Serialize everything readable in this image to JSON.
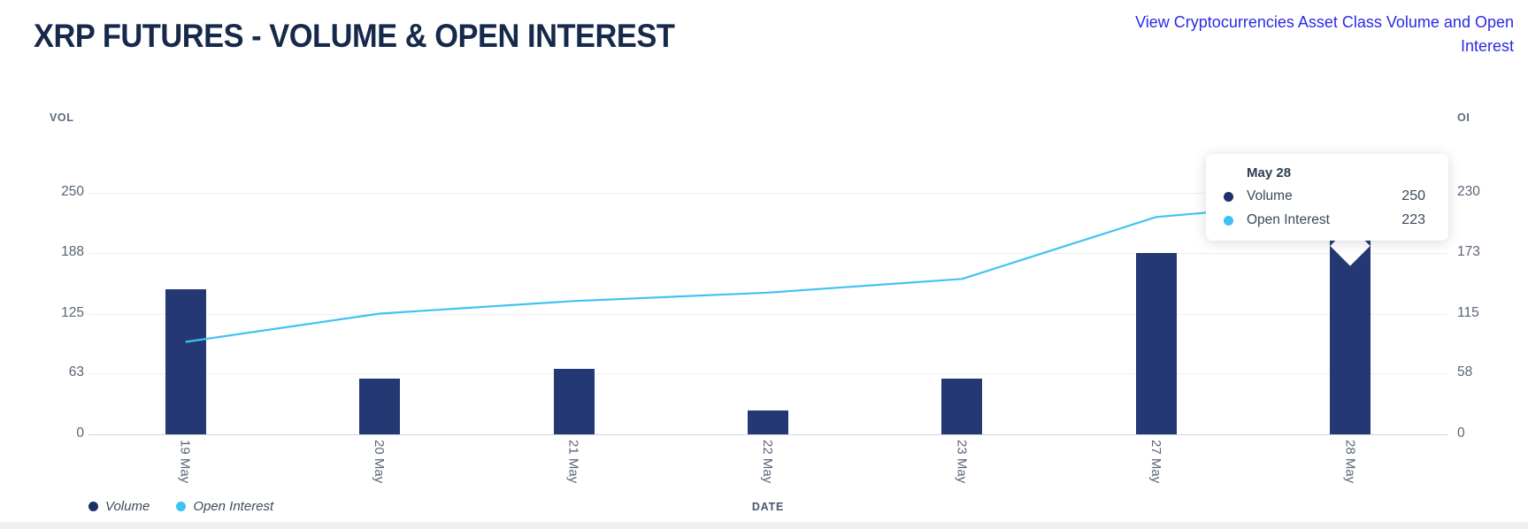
{
  "header": {
    "title": "XRP FUTURES - VOLUME & OPEN INTEREST",
    "link_text": "View Cryptocurrencies Asset Class Volume and Open Interest"
  },
  "axes": {
    "left_title": "VOL",
    "right_title": "OI",
    "x_title": "DATE"
  },
  "legend": [
    {
      "label": "Volume",
      "color": "#1f2f6b"
    },
    {
      "label": "Open Interest",
      "color": "#3ec1f4"
    }
  ],
  "tooltip": {
    "title": "May 28",
    "rows": [
      {
        "label": "Volume",
        "value": "250",
        "color": "#1f2f6b"
      },
      {
        "label": "Open Interest",
        "value": "223",
        "color": "#3ec1f4"
      }
    ]
  },
  "colors": {
    "bar": "#243874",
    "line": "#41c3f2",
    "link": "#2a2ae4",
    "title_text": "#16294a",
    "gridline": "#edeff1",
    "baseline": "#cfd4da",
    "tick_text": "#5a6477"
  },
  "chart_data": {
    "type": "bar",
    "title": "XRP FUTURES - VOLUME & OPEN INTEREST",
    "categories": [
      "19 May",
      "20 May",
      "21 May",
      "22 May",
      "23 May",
      "27 May",
      "28 May"
    ],
    "series": [
      {
        "name": "Volume",
        "type": "bar",
        "axis": "left",
        "color": "#243874",
        "values": [
          150,
          58,
          68,
          25,
          58,
          188,
          250
        ]
      },
      {
        "name": "Open Interest",
        "type": "line",
        "axis": "right",
        "color": "#41c3f2",
        "values": [
          88,
          115,
          127,
          135,
          148,
          207,
          223
        ]
      }
    ],
    "left_axis": {
      "label": "VOL",
      "max": 250,
      "ticks": [
        250,
        188,
        125,
        63,
        0
      ]
    },
    "right_axis": {
      "label": "OI",
      "max": 230,
      "ticks": [
        230,
        173,
        115,
        58,
        0
      ]
    },
    "x_label": "DATE",
    "grid": "horizontal",
    "legend_position": "bottom-left",
    "highlighted_category": "28 May"
  }
}
